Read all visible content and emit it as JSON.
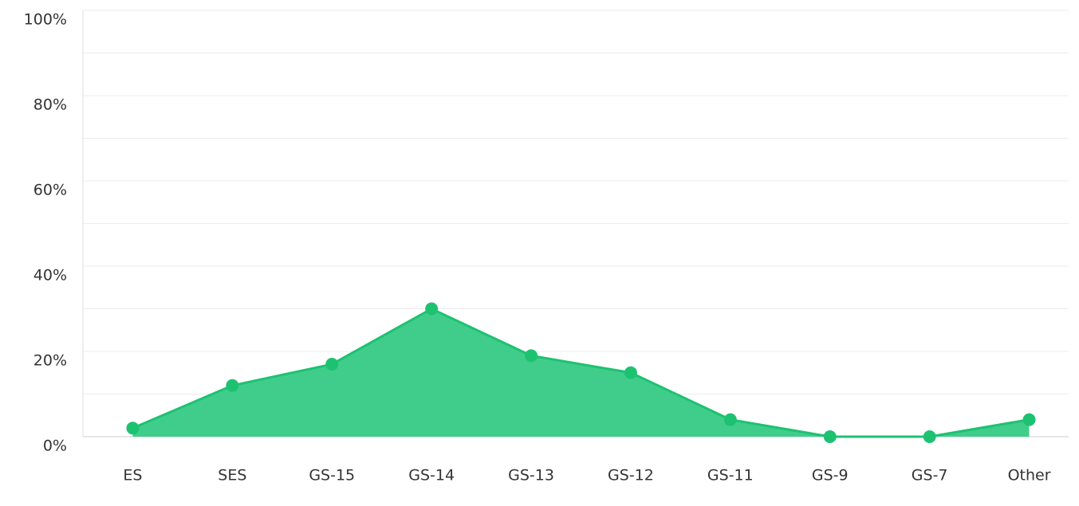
{
  "chart_data": {
    "type": "area",
    "categories": [
      "ES",
      "SES",
      "GS-15",
      "GS-14",
      "GS-13",
      "GS-12",
      "GS-11",
      "GS-9",
      "GS-7",
      "Other"
    ],
    "values": [
      2,
      12,
      17,
      30,
      19,
      15,
      4,
      0,
      0,
      4
    ],
    "color": "#1dc271",
    "fill_color": "#40cd8b",
    "ylim": [
      0,
      100
    ],
    "yticks": [
      {
        "value": 0,
        "label": "0%"
      },
      {
        "value": 20,
        "label": "20%"
      },
      {
        "value": 40,
        "label": "40%"
      },
      {
        "value": 60,
        "label": "60%"
      },
      {
        "value": 80,
        "label": "80%"
      },
      {
        "value": 100,
        "label": "100%"
      }
    ],
    "minor_yticks": [
      10,
      30,
      50,
      70,
      90
    ],
    "grid": true
  }
}
